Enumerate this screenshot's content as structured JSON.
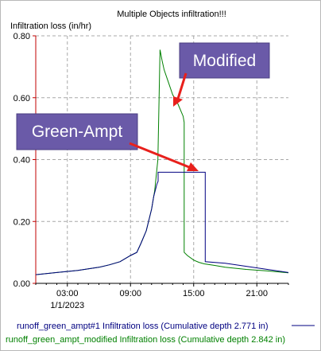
{
  "chart_data": {
    "type": "line",
    "title": "Multiple Objects infiltration!!!",
    "ylabel": "Infiltration loss (in/hr)",
    "xlabel": "",
    "x_unit": "hours since 1/1/2023 00:00",
    "xlim": [
      0,
      24
    ],
    "ylim": [
      0,
      0.8
    ],
    "yticks": [
      0.0,
      0.2,
      0.4,
      0.6,
      0.8
    ],
    "ytick_labels": [
      "0.00",
      "0.20",
      "0.40",
      "0.60",
      "0.80"
    ],
    "xticks": [
      3,
      9,
      15,
      21
    ],
    "xtick_labels": [
      "03:00",
      "09:00",
      "15:00",
      "21:00"
    ],
    "date_label": "1/1/2023",
    "grid": true,
    "series": [
      {
        "name": "runoff_green_ampt#1 Infiltration loss (Cumulative depth 2.771 in)",
        "color": "#000080",
        "x": [
          0.0,
          2.0,
          4.0,
          6.0,
          7.0,
          8.0,
          9.0,
          9.6,
          10.0,
          10.5,
          11.0,
          11.2,
          11.5,
          11.62,
          11.62,
          16.1,
          16.1,
          18.0,
          20.0,
          22.0,
          24.0
        ],
        "y": [
          0.028,
          0.035,
          0.042,
          0.052,
          0.06,
          0.07,
          0.09,
          0.1,
          0.13,
          0.17,
          0.24,
          0.28,
          0.32,
          0.33,
          0.359,
          0.359,
          0.07,
          0.065,
          0.055,
          0.045,
          0.035
        ]
      },
      {
        "name": "runoff_green_ampt_modified Infiltration loss (Cumulative depth 2.842 in)",
        "color": "#008000",
        "x": [
          0.0,
          2.0,
          4.0,
          6.0,
          7.0,
          8.0,
          9.0,
          9.6,
          10.0,
          10.5,
          11.0,
          11.3,
          11.6,
          11.8,
          12.0,
          12.2,
          12.5,
          13.0,
          13.5,
          14.0,
          14.1,
          14.1,
          14.4,
          15.0,
          15.5,
          16.0,
          17.0,
          18.0,
          20.0,
          22.0,
          24.0
        ],
        "y": [
          0.028,
          0.035,
          0.042,
          0.052,
          0.06,
          0.07,
          0.09,
          0.1,
          0.13,
          0.17,
          0.24,
          0.3,
          0.4,
          0.755,
          0.72,
          0.69,
          0.66,
          0.61,
          0.58,
          0.54,
          0.52,
          0.1,
          0.09,
          0.075,
          0.068,
          0.063,
          0.058,
          0.052,
          0.045,
          0.04,
          0.034
        ]
      }
    ],
    "annotations": [
      {
        "text": "Modified",
        "points_to": "modified peak decline"
      },
      {
        "text": "Green-Ampt",
        "points_to": "green-ampt plateau end"
      }
    ]
  }
}
